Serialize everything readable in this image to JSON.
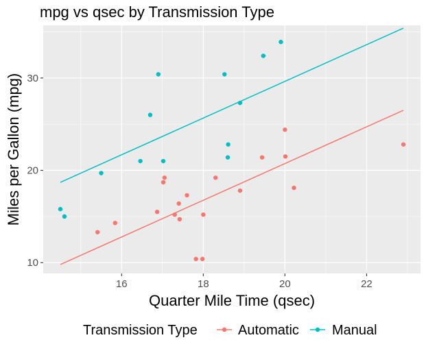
{
  "chart_data": {
    "type": "scatter",
    "title": "mpg vs qsec by Transmission Type",
    "xlabel": "Quarter Mile Time (qsec)",
    "ylabel": "Miles per Gallon (mpg)",
    "xlim": [
      14.08,
      23.32
    ],
    "ylim": [
      8.83,
      35.7
    ],
    "x_ticks": [
      16,
      18,
      20,
      22
    ],
    "y_ticks": [
      10,
      20,
      30
    ],
    "x_tick_labels": [
      "16",
      "18",
      "20",
      "22"
    ],
    "y_tick_labels": [
      "10",
      "20",
      "30"
    ],
    "grid": true,
    "legend": {
      "title": "Transmission Type",
      "position": "bottom",
      "entries": [
        "Automatic",
        "Manual"
      ]
    },
    "series": [
      {
        "name": "Automatic",
        "color": "#F8766D",
        "points": [
          {
            "x": 19.44,
            "y": 21.4
          },
          {
            "x": 17.02,
            "y": 18.7
          },
          {
            "x": 20.22,
            "y": 18.1
          },
          {
            "x": 15.84,
            "y": 14.3
          },
          {
            "x": 20.0,
            "y": 24.4
          },
          {
            "x": 22.9,
            "y": 22.8
          },
          {
            "x": 18.3,
            "y": 19.2
          },
          {
            "x": 18.9,
            "y": 17.8
          },
          {
            "x": 17.4,
            "y": 16.4
          },
          {
            "x": 17.6,
            "y": 17.3
          },
          {
            "x": 18.0,
            "y": 15.2
          },
          {
            "x": 17.98,
            "y": 10.4
          },
          {
            "x": 17.82,
            "y": 10.4
          },
          {
            "x": 17.42,
            "y": 14.7
          },
          {
            "x": 20.01,
            "y": 21.5
          },
          {
            "x": 16.87,
            "y": 15.5
          },
          {
            "x": 17.3,
            "y": 15.2
          },
          {
            "x": 15.41,
            "y": 13.3
          },
          {
            "x": 17.05,
            "y": 19.2
          }
        ],
        "fit": {
          "x": [
            14.5,
            22.9
          ],
          "y": [
            9.8,
            26.5
          ]
        }
      },
      {
        "name": "Manual",
        "color": "#00BFC4",
        "points": [
          {
            "x": 16.46,
            "y": 21.0
          },
          {
            "x": 17.02,
            "y": 21.0
          },
          {
            "x": 18.61,
            "y": 22.8
          },
          {
            "x": 19.47,
            "y": 32.4
          },
          {
            "x": 18.52,
            "y": 30.4
          },
          {
            "x": 19.9,
            "y": 33.9
          },
          {
            "x": 18.9,
            "y": 27.3
          },
          {
            "x": 16.7,
            "y": 26.0
          },
          {
            "x": 16.9,
            "y": 30.4
          },
          {
            "x": 14.5,
            "y": 15.8
          },
          {
            "x": 15.5,
            "y": 19.7
          },
          {
            "x": 14.6,
            "y": 15.0
          },
          {
            "x": 18.6,
            "y": 21.4
          }
        ],
        "fit": {
          "x": [
            14.5,
            22.9
          ],
          "y": [
            18.7,
            35.4
          ]
        }
      }
    ]
  },
  "style": {
    "panel_bg": "#EBEBEB",
    "grid_color": "#FFFFFF",
    "automatic_color": "#F8766D",
    "manual_color": "#00BFC4"
  }
}
